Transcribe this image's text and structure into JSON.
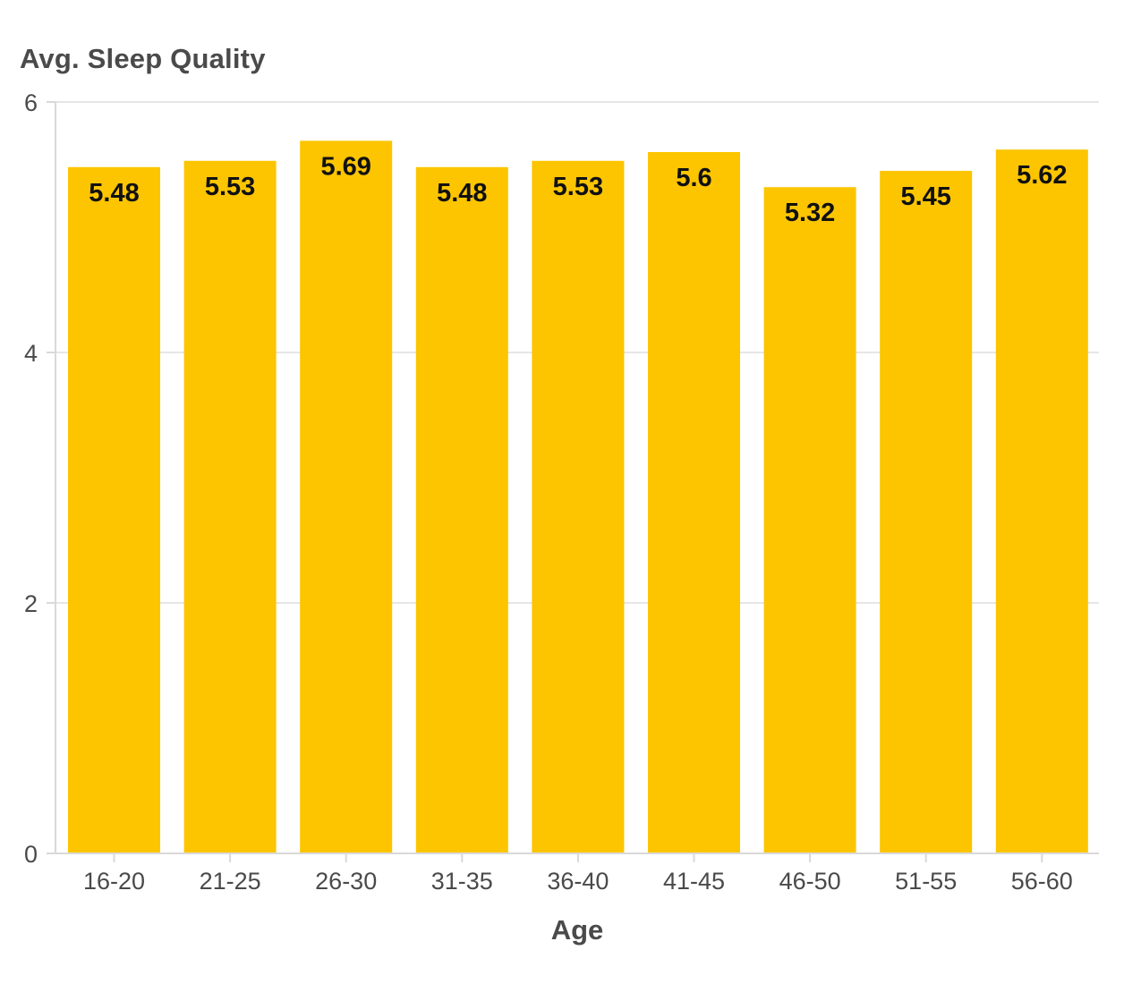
{
  "chart_data": {
    "type": "bar",
    "ylabel": "Avg. Sleep Quality",
    "xlabel": "Age",
    "categories": [
      "16-20",
      "21-25",
      "26-30",
      "31-35",
      "36-40",
      "41-45",
      "46-50",
      "51-55",
      "56-60"
    ],
    "values": [
      5.48,
      5.53,
      5.69,
      5.48,
      5.53,
      5.6,
      5.32,
      5.45,
      5.62
    ],
    "data_labels": [
      "5.48",
      "5.53",
      "5.69",
      "5.48",
      "5.53",
      "5.6",
      "5.32",
      "5.45",
      "5.62"
    ],
    "ylim": [
      0,
      6
    ],
    "yticks": [
      0,
      2,
      4,
      6
    ],
    "grid": true,
    "legend": "none",
    "colors": {
      "bar": "#fcc500",
      "grid": "#e6e6e6",
      "axis": "#d9d9d9",
      "tick_text": "#4a4a4a",
      "data_label": "#111111"
    }
  }
}
